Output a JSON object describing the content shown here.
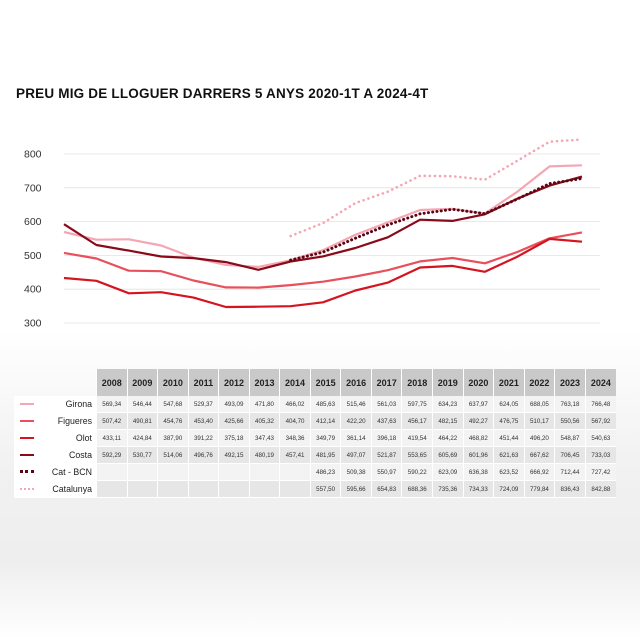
{
  "title": "PREU MIG DE LLOGUER DARRERS 5 ANYS 2020-1T A 2024-4T",
  "colors": {
    "girona": "#f4a6b4",
    "figueres": "#e8505b",
    "olot": "#d4141e",
    "costa": "#8a0a1a",
    "cat_bcn": "#5b0713",
    "catalunya": "#f4a6b4"
  },
  "chart_data": {
    "type": "line",
    "title": "PREU MIG DE LLOGUER DARRERS 5 ANYS 2020-1T A 2024-4T",
    "x": [
      2008,
      2009,
      2010,
      2011,
      2012,
      2013,
      2014,
      2015,
      2016,
      2017,
      2018,
      2019,
      2020,
      2021,
      2022,
      2023,
      2024
    ],
    "ylim": [
      300,
      800
    ],
    "yticks": [
      "800",
      "700",
      "600",
      "500",
      "400",
      "300"
    ],
    "grid": true,
    "series": [
      {
        "name": "Girona",
        "key": "girona",
        "style": "solid",
        "values": [
          569.34,
          546.44,
          547.68,
          529.37,
          493.09,
          471.8,
          466.02,
          485.63,
          515.46,
          561.03,
          597.75,
          634.23,
          637.97,
          624.05,
          688.05,
          763.18,
          766.48
        ],
        "labels": [
          "569,34",
          "546,44",
          "547,68",
          "529,37",
          "493,09",
          "471,80",
          "466,02",
          "485,63",
          "515,46",
          "561,03",
          "597,75",
          "634,23",
          "637,97",
          "624,05",
          "688,05",
          "763,18",
          "766,48"
        ]
      },
      {
        "name": "Figueres",
        "key": "figueres",
        "style": "solid",
        "values": [
          507.42,
          490.81,
          454.76,
          453.4,
          425.66,
          405.32,
          404.7,
          412.14,
          422.2,
          437.63,
          456.17,
          482.15,
          492.27,
          476.75,
          510.17,
          550.56,
          567.92
        ],
        "labels": [
          "507,42",
          "490,81",
          "454,76",
          "453,40",
          "425,66",
          "405,32",
          "404,70",
          "412,14",
          "422,20",
          "437,63",
          "456,17",
          "482,15",
          "492,27",
          "476,75",
          "510,17",
          "550,56",
          "567,92"
        ]
      },
      {
        "name": "Olot",
        "key": "olot",
        "style": "solid",
        "values": [
          433.11,
          424.84,
          387.9,
          391.22,
          375.18,
          347.43,
          348.36,
          349.79,
          361.14,
          396.18,
          419.54,
          464.22,
          468.82,
          451.44,
          496.2,
          548.87,
          540.63
        ],
        "labels": [
          "433,11",
          "424,84",
          "387,90",
          "391,22",
          "375,18",
          "347,43",
          "348,36",
          "349,79",
          "361,14",
          "396,18",
          "419,54",
          "464,22",
          "468,82",
          "451,44",
          "496,20",
          "548,87",
          "540,63"
        ]
      },
      {
        "name": "Costa",
        "key": "costa",
        "style": "solid",
        "values": [
          592.29,
          530.77,
          514.06,
          496.76,
          492.15,
          480.19,
          457.41,
          481.95,
          497.07,
          521.87,
          553.65,
          605.69,
          601.96,
          621.63,
          667.62,
          706.45,
          733.03
        ],
        "labels": [
          "592,29",
          "530,77",
          "514,06",
          "496,76",
          "492,15",
          "480,19",
          "457,41",
          "481,95",
          "497,07",
          "521,87",
          "553,65",
          "605,69",
          "601,96",
          "621,63",
          "667,62",
          "706,45",
          "733,03"
        ]
      },
      {
        "name": "Cat - BCN",
        "key": "cat_bcn",
        "style": "dotted-thick",
        "values": [
          null,
          null,
          null,
          null,
          null,
          null,
          null,
          486.23,
          509.38,
          550.97,
          590.22,
          623.09,
          636.38,
          623.52,
          666.92,
          712.44,
          727.42
        ],
        "labels": [
          "",
          "",
          "",
          "",
          "",
          "",
          "",
          "486,23",
          "509,38",
          "550,97",
          "590,22",
          "623,09",
          "636,38",
          "623,52",
          "666,92",
          "712,44",
          "727,42"
        ]
      },
      {
        "name": "Catalunya",
        "key": "catalunya",
        "style": "dotted",
        "values": [
          null,
          null,
          null,
          null,
          null,
          null,
          null,
          557.5,
          595.66,
          654.83,
          688.36,
          735.36,
          734.33,
          724.09,
          779.84,
          836.43,
          842.88
        ],
        "labels": [
          "",
          "",
          "",
          "",
          "",
          "",
          "",
          "557,50",
          "595,66",
          "654,83",
          "688,36",
          "735,36",
          "734,33",
          "724,09",
          "779,84",
          "836,43",
          "842,88"
        ]
      }
    ]
  }
}
